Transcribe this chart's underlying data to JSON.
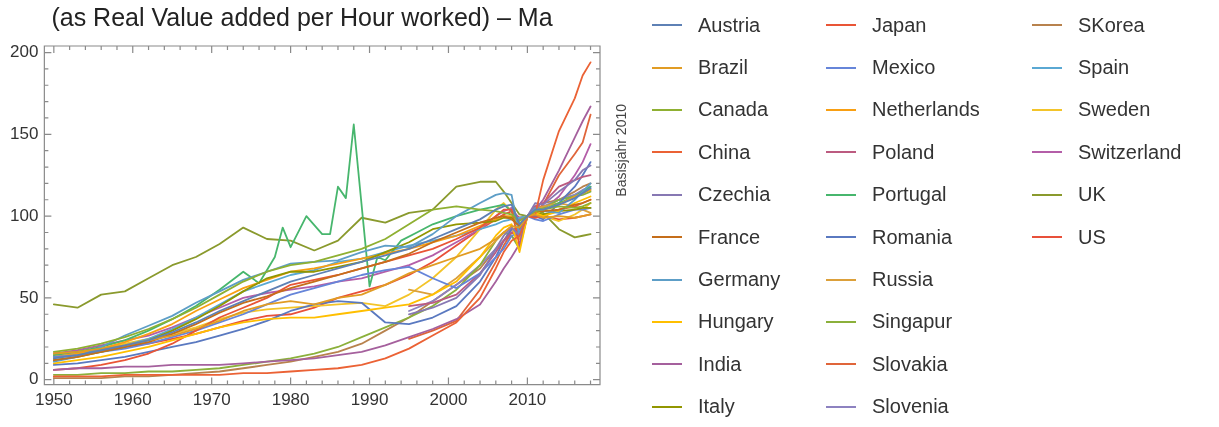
{
  "chart_data": {
    "type": "line",
    "title": "(as Real Value added per Hour worked) – Ma",
    "ylabel": "Basisjahr 2010",
    "x": [
      1950,
      1953,
      1956,
      1959,
      1962,
      1965,
      1968,
      1971,
      1974,
      1977,
      1980,
      1983,
      1986,
      1989,
      1992,
      1995,
      1998,
      2001,
      2004,
      2006,
      2007,
      2008,
      2009,
      2010,
      2011,
      2012,
      2014,
      2016,
      2017,
      2018
    ],
    "xlim": [
      1948.8,
      2019.2
    ],
    "xticks": [
      1950,
      {
        "value": 1952,
        "label": null
      },
      {
        "value": 1954,
        "label": null
      },
      {
        "value": 1956,
        "label": null
      },
      {
        "value": 1958,
        "label": null
      },
      1960,
      {
        "value": 1962,
        "label": null
      },
      {
        "value": 1964,
        "label": null
      },
      {
        "value": 1966,
        "label": null
      },
      {
        "value": 1968,
        "label": null
      },
      1970,
      {
        "value": 1972,
        "label": null
      },
      {
        "value": 1974,
        "label": null
      },
      {
        "value": 1976,
        "label": null
      },
      {
        "value": 1978,
        "label": null
      },
      1980,
      {
        "value": 1982,
        "label": null
      },
      {
        "value": 1984,
        "label": null
      },
      {
        "value": 1986,
        "label": null
      },
      {
        "value": 1988,
        "label": null
      },
      1990,
      {
        "value": 1992,
        "label": null
      },
      {
        "value": 1994,
        "label": null
      },
      {
        "value": 1996,
        "label": null
      },
      {
        "value": 1998,
        "label": null
      },
      2000,
      {
        "value": 2002,
        "label": null
      },
      {
        "value": 2004,
        "label": null
      },
      {
        "value": 2006,
        "label": null
      },
      {
        "value": 2008,
        "label": null
      },
      2010,
      {
        "value": 2012,
        "label": null
      },
      {
        "value": 2014,
        "label": null
      },
      {
        "value": 2016,
        "label": null
      },
      {
        "value": 2018,
        "label": null
      }
    ],
    "ylim": [
      -3,
      204
    ],
    "yticks": [
      0,
      {
        "value": 10,
        "label": null
      },
      {
        "value": 20,
        "label": null
      },
      {
        "value": 30,
        "label": null
      },
      {
        "value": 40,
        "label": null
      },
      50,
      {
        "value": 60,
        "label": null
      },
      {
        "value": 70,
        "label": null
      },
      {
        "value": 80,
        "label": null
      },
      {
        "value": 90,
        "label": null
      },
      100,
      {
        "value": 110,
        "label": null
      },
      {
        "value": 120,
        "label": null
      },
      {
        "value": 130,
        "label": null
      },
      {
        "value": 140,
        "label": null
      },
      150,
      {
        "value": 160,
        "label": null
      },
      {
        "value": 170,
        "label": null
      },
      {
        "value": 180,
        "label": null
      },
      {
        "value": 190,
        "label": null
      },
      200
    ],
    "grid": false,
    "legend": "right",
    "series": [
      {
        "name": "Austria",
        "color": "#5e81b5",
        "values": [
          13,
          15,
          18,
          21,
          24,
          29,
          35,
          42,
          48,
          54,
          60,
          64,
          68,
          72,
          76,
          80,
          86,
          92,
          98,
          104,
          106,
          107,
          95,
          100,
          104,
          104,
          107,
          111,
          114,
          117
        ]
      },
      {
        "name": "Brazil",
        "color": "#e19c24",
        "values": [
          16,
          17,
          19,
          21,
          24,
          27,
          31,
          36,
          42,
          46,
          48,
          46,
          50,
          52,
          58,
          65,
          70,
          75,
          80,
          86,
          90,
          94,
          93,
          100,
          101,
          99,
          100,
          99,
          100,
          101
        ]
      },
      {
        "name": "Canada",
        "color": "#8fb032",
        "values": [
          17,
          19,
          22,
          26,
          31,
          37,
          44,
          52,
          60,
          66,
          70,
          72,
          76,
          80,
          86,
          95,
          104,
          106,
          104,
          103,
          102,
          101,
          97,
          100,
          103,
          104,
          106,
          105,
          106,
          108
        ]
      },
      {
        "name": "China",
        "color": "#eb6235",
        "values": [
          2,
          2,
          2,
          3,
          3,
          3,
          3,
          3,
          4,
          4,
          5,
          6,
          7,
          9,
          13,
          19,
          27,
          35,
          50,
          68,
          78,
          85,
          88,
          100,
          101,
          122,
          152,
          172,
          186,
          194
        ]
      },
      {
        "name": "Czechia",
        "color": "#8778b3",
        "values": [
          null,
          null,
          null,
          null,
          null,
          null,
          null,
          null,
          null,
          null,
          null,
          null,
          null,
          null,
          null,
          40,
          44,
          50,
          64,
          80,
          88,
          93,
          88,
          100,
          108,
          107,
          115,
          122,
          128,
          131
        ]
      },
      {
        "name": "France",
        "color": "#c56e1a",
        "values": [
          12,
          14,
          17,
          20,
          23,
          28,
          34,
          41,
          47,
          51,
          56,
          60,
          64,
          68,
          72,
          77,
          84,
          90,
          96,
          99,
          100,
          98,
          94,
          100,
          103,
          103,
          104,
          107,
          108,
          110
        ]
      },
      {
        "name": "Germany",
        "color": "#5d9ec7",
        "values": [
          11,
          14,
          20,
          27,
          33,
          39,
          47,
          54,
          61,
          66,
          71,
          72,
          73,
          78,
          82,
          81,
          89,
          100,
          108,
          113,
          114,
          113,
          88,
          100,
          105,
          103,
          102,
          110,
          115,
          120
        ]
      },
      {
        "name": "Hungary",
        "color": "#ffbf00",
        "values": [
          10,
          12,
          14,
          17,
          20,
          24,
          28,
          32,
          35,
          37,
          38,
          38,
          40,
          42,
          44,
          46,
          52,
          60,
          75,
          88,
          93,
          95,
          78,
          100,
          102,
          100,
          103,
          108,
          110,
          112
        ]
      },
      {
        "name": "India",
        "color": "#a5609d",
        "values": [
          6,
          7,
          7,
          8,
          8,
          9,
          9,
          9,
          10,
          11,
          12,
          13,
          15,
          17,
          21,
          26,
          31,
          37,
          46,
          60,
          68,
          75,
          83,
          100,
          104,
          110,
          128,
          148,
          158,
          167
        ]
      },
      {
        "name": "Italy",
        "color": "#929600",
        "values": [
          12,
          14,
          17,
          20,
          24,
          30,
          37,
          45,
          54,
          62,
          66,
          66,
          69,
          72,
          78,
          84,
          92,
          95,
          96,
          97,
          99,
          99,
          93,
          100,
          102,
          101,
          103,
          104,
          105,
          105
        ]
      },
      {
        "name": "Japan",
        "color": "#e95536",
        "values": [
          6,
          7,
          9,
          12,
          16,
          22,
          30,
          38,
          44,
          50,
          58,
          61,
          64,
          68,
          72,
          76,
          80,
          86,
          93,
          100,
          104,
          104,
          82,
          100,
          99,
          100,
          104,
          106,
          108,
          110
        ]
      },
      {
        "name": "Mexico",
        "color": "#6685d9",
        "values": [
          14,
          15,
          17,
          19,
          22,
          26,
          30,
          35,
          40,
          46,
          52,
          56,
          60,
          64,
          67,
          69,
          62,
          56,
          65,
          75,
          80,
          88,
          90,
          100,
          98,
          97,
          101,
          104,
          104,
          105
        ]
      },
      {
        "name": "Netherlands",
        "color": "#f89f13",
        "values": [
          14,
          16,
          19,
          23,
          28,
          34,
          42,
          49,
          56,
          61,
          66,
          68,
          71,
          74,
          77,
          80,
          84,
          88,
          94,
          98,
          100,
          100,
          94,
          100,
          104,
          104,
          107,
          112,
          114,
          116
        ]
      },
      {
        "name": "Poland",
        "color": "#bc5b80",
        "values": [
          null,
          null,
          null,
          null,
          null,
          null,
          null,
          null,
          null,
          null,
          null,
          null,
          null,
          null,
          null,
          45,
          47,
          52,
          65,
          78,
          85,
          90,
          92,
          100,
          106,
          108,
          118,
          122,
          124,
          125
        ]
      },
      {
        "name": "Portugal",
        "color": "#47b66d",
        "x": [
          1950,
          1953,
          1956,
          1959,
          1962,
          1965,
          1968,
          1971,
          1974,
          1976,
          1978,
          1979,
          1980,
          1982,
          1984,
          1985,
          1986,
          1987,
          1988,
          1990,
          1991,
          1992,
          1994,
          1996,
          1998,
          2001,
          2004,
          2006,
          2007,
          2008,
          2009,
          2010,
          2011,
          2012,
          2014,
          2016,
          2017,
          2018
        ],
        "values": [
          15,
          17,
          20,
          24,
          30,
          37,
          45,
          55,
          66,
          59,
          75,
          93,
          81,
          100,
          89,
          89,
          118,
          111,
          156,
          57,
          75,
          73,
          85,
          90,
          95,
          100,
          104,
          106,
          107,
          103,
          95,
          100,
          105,
          104,
          108,
          112,
          115,
          118
        ]
      },
      {
        "name": "Romania",
        "color": "#5a79c0",
        "values": [
          9,
          10,
          12,
          14,
          17,
          20,
          23,
          27,
          31,
          36,
          42,
          46,
          48,
          47,
          35,
          34,
          38,
          45,
          60,
          75,
          85,
          92,
          90,
          100,
          100,
          98,
          108,
          118,
          125,
          133
        ]
      },
      {
        "name": "Russia",
        "color": "#dca03a",
        "values": [
          null,
          null,
          null,
          null,
          null,
          null,
          null,
          null,
          null,
          null,
          null,
          null,
          null,
          null,
          null,
          55,
          52,
          62,
          75,
          85,
          90,
          93,
          86,
          100,
          104,
          106,
          108,
          106,
          104,
          102
        ]
      },
      {
        "name": "Singapur",
        "color": "#8bb03b",
        "values": [
          3,
          3,
          4,
          4,
          5,
          5,
          6,
          7,
          9,
          11,
          13,
          16,
          20,
          26,
          32,
          38,
          45,
          55,
          70,
          85,
          90,
          88,
          80,
          100,
          104,
          105,
          110,
          112,
          113,
          115
        ]
      },
      {
        "name": "Slovakia",
        "color": "#e0653a",
        "values": [
          null,
          null,
          null,
          null,
          null,
          null,
          null,
          null,
          null,
          null,
          null,
          null,
          null,
          null,
          null,
          25,
          30,
          36,
          55,
          72,
          82,
          90,
          87,
          100,
          103,
          107,
          125,
          138,
          145,
          162
        ]
      },
      {
        "name": "Slovenia",
        "color": "#8d82c0",
        "values": [
          null,
          null,
          null,
          null,
          null,
          null,
          null,
          null,
          null,
          null,
          null,
          null,
          null,
          null,
          null,
          42,
          48,
          58,
          70,
          80,
          85,
          88,
          82,
          100,
          105,
          106,
          110,
          113,
          116,
          118
        ]
      },
      {
        "name": "SKorea",
        "color": "#b8824d",
        "values": [
          1,
          1,
          1,
          2,
          2,
          3,
          4,
          5,
          7,
          9,
          11,
          14,
          17,
          22,
          30,
          38,
          48,
          58,
          68,
          80,
          85,
          92,
          93,
          100,
          106,
          108,
          110,
          115,
          118,
          120
        ]
      },
      {
        "name": "Spain",
        "color": "#5aa8d3",
        "values": [
          14,
          16,
          18,
          21,
          25,
          31,
          38,
          46,
          54,
          59,
          64,
          67,
          72,
          74,
          78,
          82,
          85,
          88,
          92,
          95,
          97,
          98,
          99,
          100,
          103,
          105,
          110,
          113,
          115,
          116
        ]
      },
      {
        "name": "Sweden",
        "color": "#f3c42a",
        "values": [
          15,
          17,
          19,
          22,
          25,
          28,
          32,
          37,
          41,
          43,
          44,
          45,
          46,
          47,
          45,
          52,
          62,
          75,
          92,
          104,
          108,
          103,
          92,
          100,
          104,
          100,
          97,
          101,
          104,
          108
        ]
      },
      {
        "name": "Switzerland",
        "color": "#b45ea8",
        "values": [
          16,
          18,
          21,
          24,
          27,
          32,
          38,
          44,
          50,
          53,
          55,
          57,
          60,
          62,
          66,
          70,
          76,
          84,
          92,
          100,
          103,
          105,
          98,
          100,
          102,
          104,
          112,
          125,
          133,
          144
        ]
      },
      {
        "name": "UK",
        "color": "#8a9a2d",
        "values": [
          46,
          44,
          52,
          54,
          62,
          70,
          75,
          83,
          93,
          86,
          85,
          79,
          85,
          99,
          96,
          102,
          104,
          118,
          121,
          121,
          115,
          108,
          101,
          100,
          103,
          102,
          92,
          87,
          88,
          89
        ]
      },
      {
        "name": "US",
        "color": "#e8503a",
        "values": [
          16,
          17,
          18,
          20,
          22,
          25,
          28,
          32,
          36,
          39,
          40,
          44,
          50,
          54,
          58,
          64,
          72,
          82,
          92,
          98,
          101,
          103,
          99,
          100,
          100,
          100,
          98,
          99,
          100,
          101
        ]
      }
    ]
  }
}
